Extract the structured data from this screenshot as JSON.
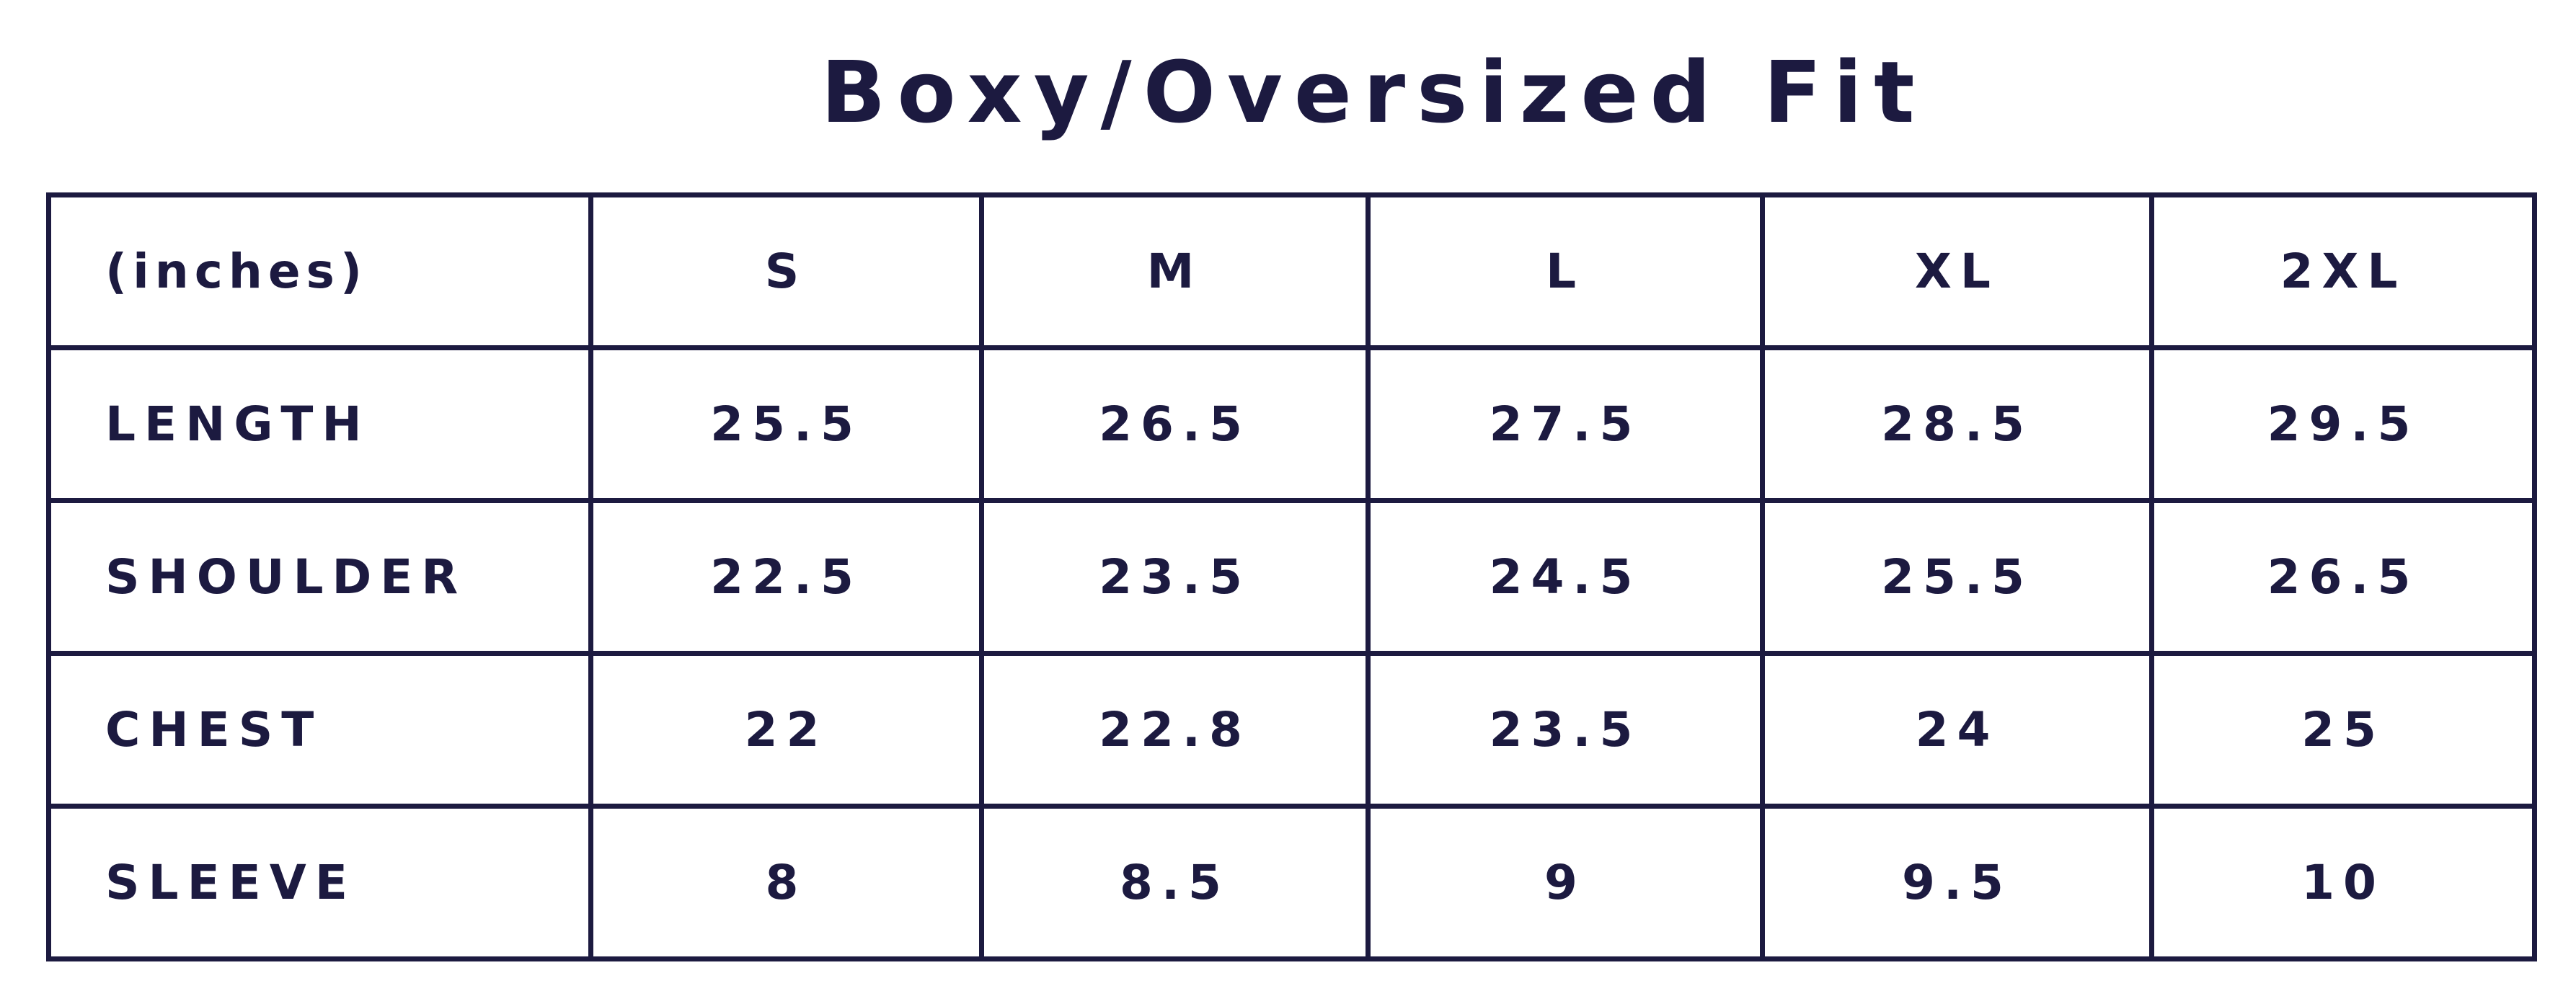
{
  "header": {
    "title": "Boxy/Oversized Fit"
  },
  "table": {
    "columns": [
      "(inches)",
      "S",
      "M",
      "L",
      "XL",
      "2XL"
    ],
    "rows": [
      [
        "LENGTH",
        "25.5",
        "26.5",
        "27.5",
        "28.5",
        "29.5"
      ],
      [
        "SHOULDER",
        "22.5",
        "23.5",
        "24.5",
        "25.5",
        "26.5"
      ],
      [
        "CHEST",
        "22",
        "22.8",
        "23.5",
        "24",
        "25"
      ],
      [
        "SLEEVE",
        "8",
        "8.5",
        "9",
        "9.5",
        "10"
      ]
    ]
  }
}
